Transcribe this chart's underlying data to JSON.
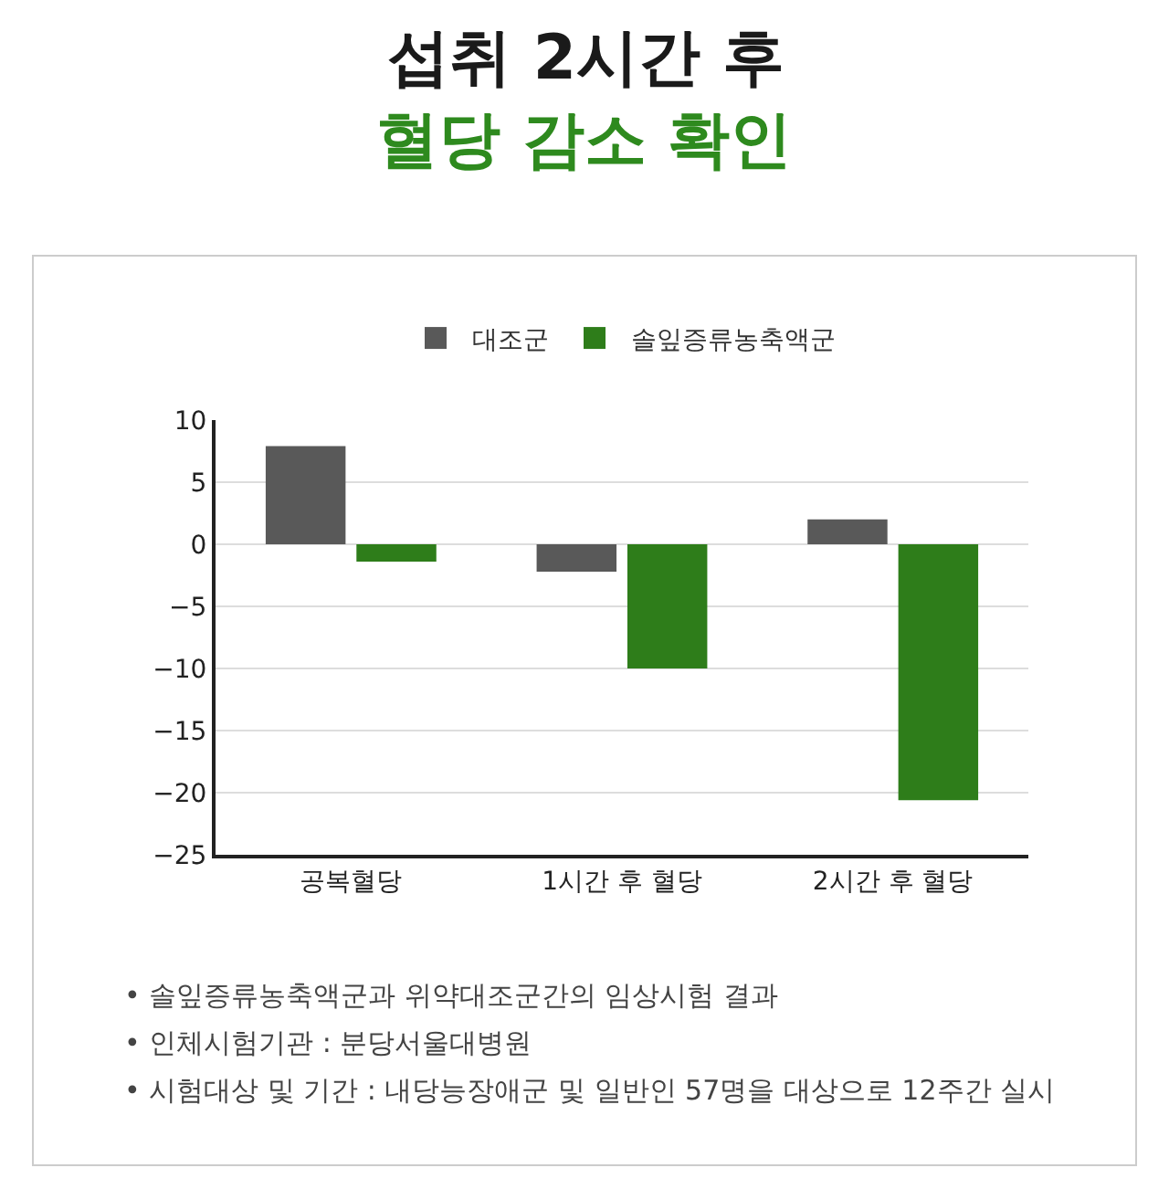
{
  "chart_data": {
    "type": "bar",
    "title": "섭취 2시간 후",
    "subtitle": "혈당 감소 확인",
    "categories": [
      "공복혈당",
      "1시간 후 혈당",
      "2시간 후 혈당"
    ],
    "series": [
      {
        "name": "대조군",
        "color": "#595959",
        "values": [
          7.9,
          -2.2,
          2.0
        ]
      },
      {
        "name": "솔잎증류농축액군",
        "color": "#2e7d1a",
        "values": [
          -1.4,
          -10.0,
          -20.6
        ]
      }
    ],
    "ylim": [
      -25,
      10
    ],
    "yticks": [
      -25,
      -20,
      -15,
      -10,
      -5,
      0,
      5,
      10
    ],
    "grid": "y",
    "legend": "top",
    "annotations": [
      "• 솔잎증류농축액군과 위약대조군간의 임상시험 결과",
      "• 인체시험기관 : 분당서울대병원",
      "• 시험대상 및 기간 : 내당능장애군 및 일반인 57명을 대상으로 12주간 실시"
    ]
  }
}
